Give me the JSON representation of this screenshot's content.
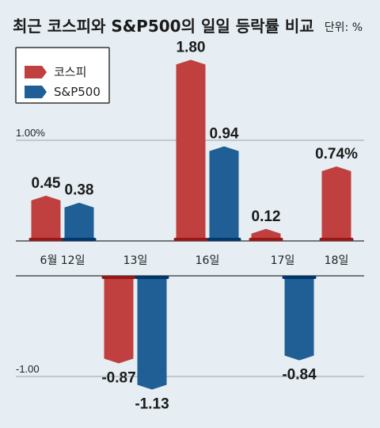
{
  "chart_data": {
    "type": "bar",
    "title": "최근 코스피와 S&P500의 일일 등락률 비교",
    "unit_label": "단위: %",
    "categories": [
      "6월 12일",
      "13일",
      "16일",
      "17일",
      "18일"
    ],
    "series": [
      {
        "name": "코스피",
        "color": "#c0403f",
        "values": [
          0.45,
          -0.87,
          1.8,
          0.12,
          0.74
        ]
      },
      {
        "name": "S&P500",
        "color": "#1f5f95",
        "values": [
          0.38,
          -1.13,
          0.94,
          -0.84,
          null
        ]
      }
    ],
    "value_labels": {
      "코스피": [
        "0.45",
        "-0.87",
        "1.80",
        "0.12",
        "0.74%"
      ],
      "S&P500": [
        "0.38",
        "-1.13",
        "0.94",
        "-0.84",
        ""
      ]
    },
    "y_ticks": [
      {
        "value": 1.0,
        "label": "1.00%"
      },
      {
        "value": -1.0,
        "label": "-1.00"
      }
    ],
    "ylim": [
      -1.2,
      1.9
    ],
    "legend_position": "top-left"
  }
}
